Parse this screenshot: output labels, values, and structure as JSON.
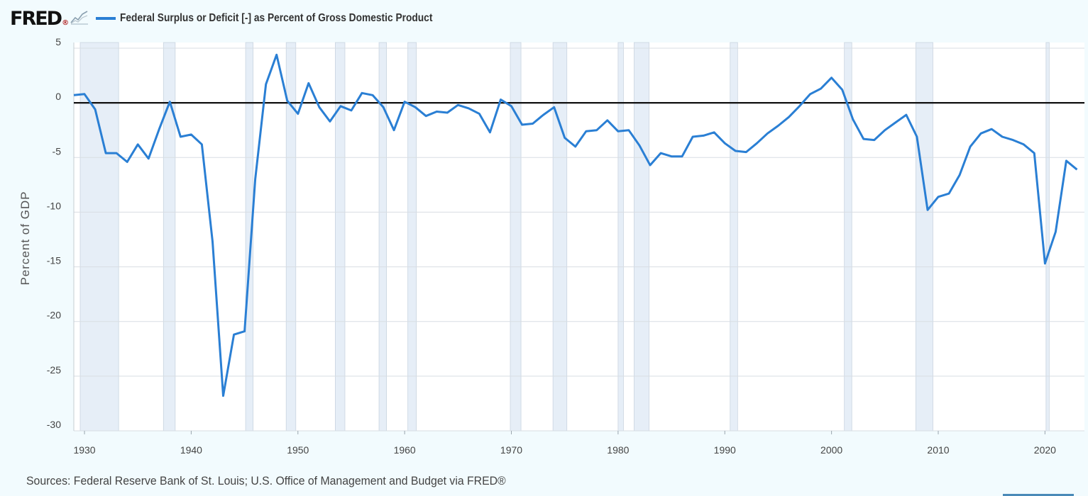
{
  "header": {
    "logo_text": "FRED",
    "logo_mark": "®",
    "logo_icon": "chart-line-icon",
    "legend_label": "Federal Surplus or Deficit [-] as Percent of Gross Domestic Product"
  },
  "source_text": "Sources: Federal Reserve Bank of St. Louis; U.S. Office of Management and Budget via FRED®",
  "colors": {
    "series": "#2a7fd4",
    "background": "#f2fbfe",
    "plot_background": "#ffffff",
    "recession": "#e6eef7",
    "grid": "#d8dde3",
    "zero_line": "#111111"
  },
  "chart_data": {
    "type": "line",
    "title": "",
    "xlabel": "",
    "ylabel": "Percent of GDP",
    "xlim": [
      1929,
      2023.7
    ],
    "ylim": [
      -30,
      5
    ],
    "y_ticks": [
      5,
      0,
      -5,
      -10,
      -15,
      -20,
      -25,
      -30
    ],
    "x_ticks": [
      1930,
      1940,
      1950,
      1960,
      1970,
      1980,
      1990,
      2000,
      2010,
      2020
    ],
    "grid": true,
    "legend_position": "top-left",
    "reference_line": 0,
    "series": [
      {
        "name": "Federal Surplus or Deficit [-] as Percent of Gross Domestic Product",
        "x": [
          1929,
          1930,
          1931,
          1932,
          1933,
          1934,
          1935,
          1936,
          1937,
          1938,
          1939,
          1940,
          1941,
          1942,
          1943,
          1944,
          1945,
          1946,
          1947,
          1948,
          1949,
          1950,
          1951,
          1952,
          1953,
          1954,
          1955,
          1956,
          1957,
          1958,
          1959,
          1960,
          1961,
          1962,
          1963,
          1964,
          1965,
          1966,
          1967,
          1968,
          1969,
          1970,
          1971,
          1972,
          1973,
          1974,
          1975,
          1976,
          1977,
          1978,
          1979,
          1980,
          1981,
          1982,
          1983,
          1984,
          1985,
          1986,
          1987,
          1988,
          1989,
          1990,
          1991,
          1992,
          1993,
          1994,
          1995,
          1996,
          1997,
          1998,
          1999,
          2000,
          2001,
          2002,
          2003,
          2004,
          2005,
          2006,
          2007,
          2008,
          2009,
          2010,
          2011,
          2012,
          2013,
          2014,
          2015,
          2016,
          2017,
          2018,
          2019,
          2020,
          2021,
          2022,
          2023
        ],
        "values": [
          0.7,
          0.8,
          -0.6,
          -4.6,
          -4.6,
          -5.4,
          -3.8,
          -5.1,
          -2.4,
          0.1,
          -3.1,
          -2.9,
          -3.8,
          -12.7,
          -26.8,
          -21.2,
          -20.9,
          -7.0,
          1.7,
          4.4,
          0.2,
          -1.0,
          1.8,
          -0.4,
          -1.7,
          -0.3,
          -0.7,
          0.9,
          0.7,
          -0.4,
          -2.5,
          0.1,
          -0.4,
          -1.2,
          -0.8,
          -0.9,
          -0.2,
          -0.5,
          -1.0,
          -2.7,
          0.3,
          -0.3,
          -2.0,
          -1.9,
          -1.1,
          -0.4,
          -3.2,
          -4.0,
          -2.6,
          -2.5,
          -1.6,
          -2.6,
          -2.5,
          -3.9,
          -5.7,
          -4.6,
          -4.9,
          -4.9,
          -3.1,
          -3.0,
          -2.7,
          -3.7,
          -4.4,
          -4.5,
          -3.7,
          -2.8,
          -2.1,
          -1.3,
          -0.3,
          0.8,
          1.3,
          2.3,
          1.2,
          -1.5,
          -3.3,
          -3.4,
          -2.5,
          -1.8,
          -1.1,
          -3.1,
          -9.8,
          -8.6,
          -8.3,
          -6.6,
          -4.0,
          -2.8,
          -2.4,
          -3.1,
          -3.4,
          -3.8,
          -4.6,
          -14.7,
          -11.8,
          -5.3,
          -6.1
        ]
      }
    ],
    "recessions": [
      [
        1929.6,
        1933.2
      ],
      [
        1937.4,
        1938.5
      ],
      [
        1945.1,
        1945.8
      ],
      [
        1948.9,
        1949.8
      ],
      [
        1953.5,
        1954.4
      ],
      [
        1957.6,
        1958.3
      ],
      [
        1960.3,
        1961.1
      ],
      [
        1969.9,
        1970.9
      ],
      [
        1973.9,
        1975.2
      ],
      [
        1980.0,
        1980.5
      ],
      [
        1981.5,
        1982.9
      ],
      [
        1990.5,
        1991.2
      ],
      [
        2001.2,
        2001.9
      ],
      [
        2007.9,
        2009.5
      ],
      [
        2020.1,
        2020.4
      ]
    ]
  }
}
